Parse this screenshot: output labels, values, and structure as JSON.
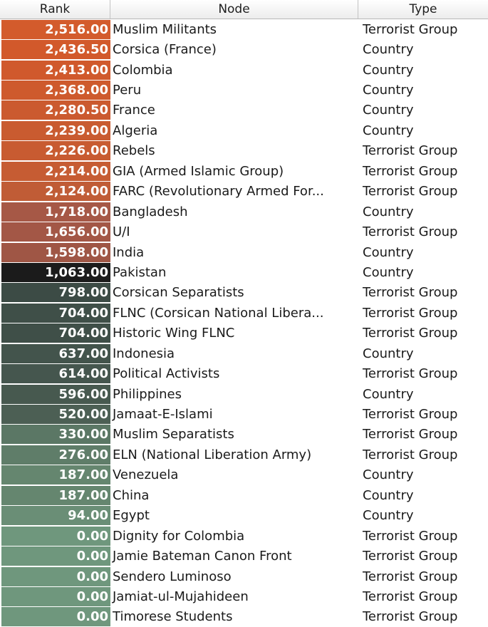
{
  "columns": {
    "rank": "Rank",
    "node": "Node",
    "type": "Type"
  },
  "colors": {
    "high": "#cf5a2a",
    "mid": "#9a5a48",
    "peak_dark": "#1e1e1e",
    "low_dark": "#3f4f49",
    "low_green": "#6f9a7f"
  },
  "rows": [
    {
      "rank": "2,516.00",
      "node": "Muslim Militants",
      "type": "Terrorist Group",
      "color": "#d35b2c"
    },
    {
      "rank": "2,436.50",
      "node": "Corsica (France)",
      "type": "Country",
      "color": "#d2592b"
    },
    {
      "rank": "2,413.00",
      "node": "Colombia",
      "type": "Country",
      "color": "#d0592c"
    },
    {
      "rank": "2,368.00",
      "node": "Peru",
      "type": "Country",
      "color": "#ce5a2d"
    },
    {
      "rank": "2,280.50",
      "node": "France",
      "type": "Country",
      "color": "#cb5a2f"
    },
    {
      "rank": "2,239.00",
      "node": "Algeria",
      "type": "Country",
      "color": "#c95b30"
    },
    {
      "rank": "2,226.00",
      "node": "Rebels",
      "type": "Terrorist Group",
      "color": "#c85b31"
    },
    {
      "rank": "2,214.00",
      "node": "GIA (Armed Islamic Group)",
      "type": "Terrorist Group",
      "color": "#c65c33"
    },
    {
      "rank": "2,124.00",
      "node": "FARC (Revolutionary Armed For...",
      "type": "Terrorist Group",
      "color": "#c05c36"
    },
    {
      "rank": "1,718.00",
      "node": "Bangladesh",
      "type": "Country",
      "color": "#a65846"
    },
    {
      "rank": "1,656.00",
      "node": "U/I",
      "type": "Terrorist Group",
      "color": "#a35746"
    },
    {
      "rank": "1,598.00",
      "node": "India",
      "type": "Country",
      "color": "#9f5645"
    },
    {
      "rank": "1,063.00",
      "node": "Pakistan",
      "type": "Country",
      "color": "#1b1b1b"
    },
    {
      "rank": "798.00",
      "node": "Corsican Separatists",
      "type": "Terrorist Group",
      "color": "#3c4b45"
    },
    {
      "rank": "704.00",
      "node": "FLNC (Corsican National Libera...",
      "type": "Terrorist Group",
      "color": "#3f4f48"
    },
    {
      "rank": "704.00",
      "node": "Historic Wing FLNC",
      "type": "Terrorist Group",
      "color": "#3f4f48"
    },
    {
      "rank": "637.00",
      "node": "Indonesia",
      "type": "Country",
      "color": "#43544c"
    },
    {
      "rank": "614.00",
      "node": "Political Activists",
      "type": "Terrorist Group",
      "color": "#45564e"
    },
    {
      "rank": "596.00",
      "node": "Philippines",
      "type": "Country",
      "color": "#47594f"
    },
    {
      "rank": "520.00",
      "node": "Jamaat-E-Islami",
      "type": "Terrorist Group",
      "color": "#4c5f54"
    },
    {
      "rank": "330.00",
      "node": "Muslim Separatists",
      "type": "Terrorist Group",
      "color": "#5b7765"
    },
    {
      "rank": "276.00",
      "node": "ELN (National Liberation Army)",
      "type": "Terrorist Group",
      "color": "#5f7d69"
    },
    {
      "rank": "187.00",
      "node": "Venezuela",
      "type": "Country",
      "color": "#65866f"
    },
    {
      "rank": "187.00",
      "node": "China",
      "type": "Country",
      "color": "#65866f"
    },
    {
      "rank": "94.00",
      "node": "Egypt",
      "type": "Country",
      "color": "#6a8e76"
    },
    {
      "rank": "0.00",
      "node": "Dignity for Colombia",
      "type": "Terrorist Group",
      "color": "#6f977d"
    },
    {
      "rank": "0.00",
      "node": "Jamie Bateman Canon Front",
      "type": "Terrorist Group",
      "color": "#6f977d"
    },
    {
      "rank": "0.00",
      "node": "Sendero Luminoso",
      "type": "Terrorist Group",
      "color": "#6f977d"
    },
    {
      "rank": "0.00",
      "node": "Jamiat-ul-Mujahideen",
      "type": "Terrorist Group",
      "color": "#6f977d"
    },
    {
      "rank": "0.00",
      "node": "Timorese Students",
      "type": "Terrorist Group",
      "color": "#6f977d"
    }
  ]
}
